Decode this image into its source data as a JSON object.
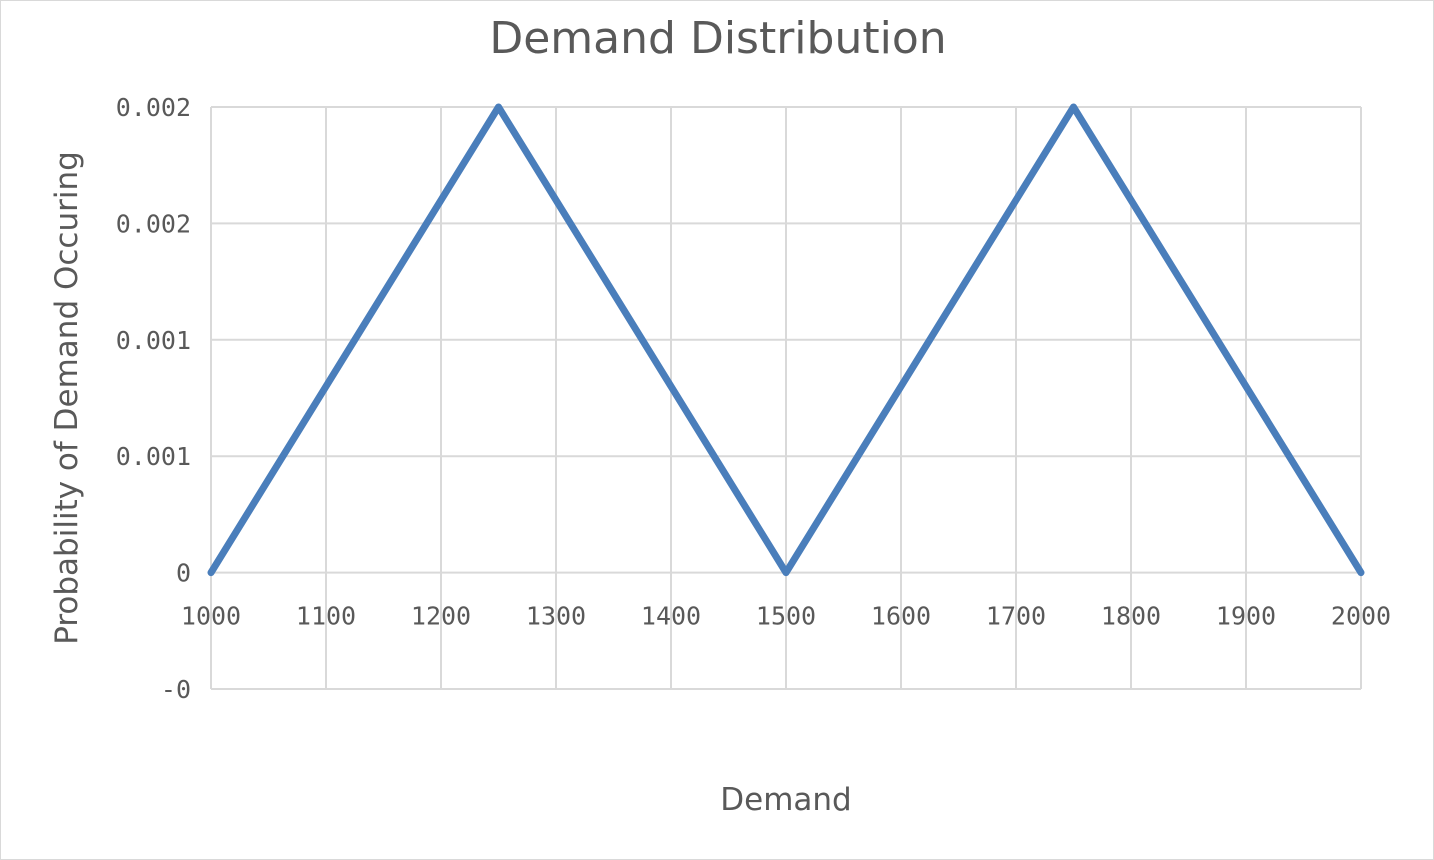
{
  "chart_data": {
    "type": "line",
    "title": "Demand Distribution",
    "xlabel": "Demand",
    "ylabel": "Probability of Demand Occuring",
    "xlim": [
      1000,
      2000
    ],
    "ylim": [
      -0.0005,
      0.002
    ],
    "x_ticks": [
      1000,
      1100,
      1200,
      1300,
      1400,
      1500,
      1600,
      1700,
      1800,
      1900,
      2000
    ],
    "x_tick_labels": [
      "1000",
      "1100",
      "1200",
      "1300",
      "1400",
      "1500",
      "1600",
      "1700",
      "1800",
      "1900",
      "2000"
    ],
    "y_ticks": [
      -0.0005,
      0,
      0.0005,
      0.001,
      0.0015,
      0.002
    ],
    "y_tick_labels": [
      "-0",
      "0",
      "0.001",
      "0.001",
      "0.002",
      "0.002"
    ],
    "grid": true,
    "legend": "none",
    "series": [
      {
        "color": "#4a7ebb",
        "x": [
          1000,
          1250,
          1500,
          1750,
          2000
        ],
        "y": [
          0,
          0.002,
          0,
          0.002,
          0
        ]
      }
    ]
  }
}
